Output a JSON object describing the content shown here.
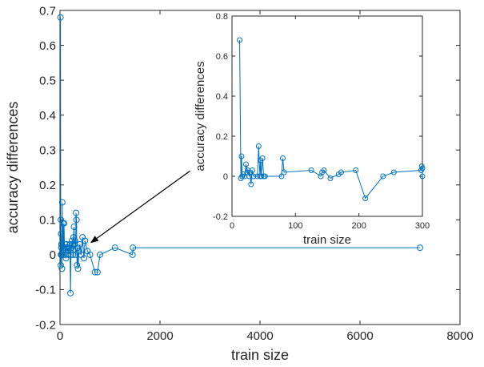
{
  "colors": {
    "series": "#0072BD",
    "axis": "#262626",
    "background": "#ffffff"
  },
  "chart_data": [
    {
      "id": "main",
      "type": "line",
      "xlabel": "train size",
      "ylabel": "accuracy differences",
      "xlim": [
        0,
        8000
      ],
      "ylim": [
        -0.2,
        0.7
      ],
      "xticks": [
        0,
        2000,
        4000,
        6000,
        8000
      ],
      "xtick_labels": [
        "0",
        "2000",
        "4000",
        "6000",
        "8000"
      ],
      "yticks": [
        -0.2,
        -0.1,
        0,
        0.1,
        0.2,
        0.3,
        0.4,
        0.5,
        0.6,
        0.7
      ],
      "ytick_labels": [
        "-0.2",
        "-0.1",
        "0",
        "0.1",
        "0.2",
        "0.3",
        "0.4",
        "0.5",
        "0.6",
        "0.7"
      ],
      "grid": false,
      "marker": "circle",
      "series": [
        {
          "x": [
            10,
            15,
            18,
            20,
            22,
            25,
            30,
            35,
            40,
            45,
            50,
            60,
            70,
            80,
            90,
            100,
            110,
            120,
            130,
            140,
            150,
            160,
            170,
            180,
            200,
            210,
            220,
            230,
            240,
            250,
            260,
            270,
            280,
            290,
            300,
            310,
            320,
            330,
            340,
            350,
            360,
            380,
            400,
            420,
            450,
            480,
            500,
            550,
            600,
            700,
            750,
            800,
            1100,
            1450,
            1460,
            7200
          ],
          "y": [
            0.68,
            -0.03,
            0.1,
            0.0,
            0.06,
            0.02,
            0.03,
            0.0,
            -0.04,
            0.15,
            0.01,
            0.09,
            0.0,
            0.09,
            0.02,
            0.03,
            0.0,
            -0.01,
            0.03,
            0.02,
            0.01,
            0.02,
            0.0,
            0.02,
            0.03,
            -0.11,
            0.0,
            0.02,
            0.04,
            0.03,
            0.0,
            0.05,
            0.08,
            0.03,
            0.04,
            0.0,
            0.12,
            0.1,
            -0.03,
            0.02,
            -0.04,
            0.01,
            0.03,
            0.0,
            0.05,
            -0.01,
            0.04,
            0.01,
            0.0,
            -0.05,
            -0.05,
            0.0,
            0.02,
            0.0,
            0.02,
            0.02
          ]
        }
      ],
      "annotation": {
        "type": "arrow",
        "from": [
          2600,
          0.24
        ],
        "to": [
          620,
          0.035
        ]
      }
    },
    {
      "id": "inset",
      "type": "line",
      "xlabel": "train size",
      "ylabel": "accuracy differences",
      "xlim": [
        0,
        300
      ],
      "ylim": [
        -0.2,
        0.8
      ],
      "xticks": [
        0,
        100,
        200,
        300
      ],
      "xtick_labels": [
        "0",
        "100",
        "200",
        "300"
      ],
      "yticks": [
        -0.2,
        0,
        0.2,
        0.4,
        0.6,
        0.8
      ],
      "ytick_labels": [
        "-0.2",
        "0",
        "0.2",
        "0.4",
        "0.6",
        "0.8"
      ],
      "grid": false,
      "marker": "circle",
      "series": [
        {
          "x": [
            12,
            14,
            15,
            16,
            18,
            20,
            22,
            24,
            25,
            27,
            28,
            30,
            32,
            34,
            40,
            42,
            44,
            45,
            46,
            48,
            50,
            52,
            78,
            80,
            82,
            125,
            140,
            142,
            145,
            155,
            168,
            172,
            195,
            210,
            238,
            255,
            298,
            299,
            300,
            300
          ],
          "y": [
            0.68,
            -0.01,
            0.1,
            0.0,
            0.01,
            0.0,
            0.06,
            0.02,
            0.03,
            0.0,
            0.02,
            -0.04,
            0.03,
            0.0,
            0.0,
            0.15,
            0.0,
            0.08,
            0.0,
            0.09,
            0.0,
            0.0,
            0.0,
            0.09,
            0.02,
            0.03,
            0.0,
            0.02,
            0.03,
            -0.01,
            0.01,
            0.02,
            0.03,
            -0.11,
            0.0,
            0.02,
            0.03,
            0.05,
            0.04,
            0.0
          ]
        }
      ]
    }
  ]
}
